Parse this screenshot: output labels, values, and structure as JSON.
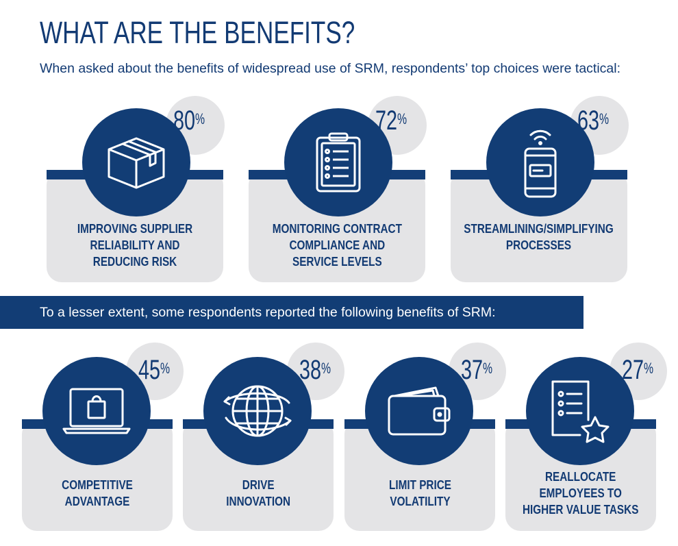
{
  "title": "WHAT ARE THE BENEFITS?",
  "subtitle": "When asked about the benefits of widespread use of SRM, respondents’ top choices were tactical:",
  "banner": "To a lesser extent, some respondents reported the following benefits of SRM:",
  "colors": {
    "navy": "#123d75",
    "light_gray": "#e4e4e6",
    "white": "#ffffff"
  },
  "top_cards": [
    {
      "percent": "80",
      "label": "IMPROVING SUPPLIER\nRELIABILITY AND\nREDUCING RISK",
      "icon": "package-box-icon"
    },
    {
      "percent": "72",
      "label": "MONITORING CONTRACT\nCOMPLIANCE AND\nSERVICE LEVELS",
      "icon": "clipboard-checklist-icon"
    },
    {
      "percent": "63",
      "label": "STREAMLINING/SIMPLIFYING\nPROCESSES",
      "icon": "mobile-phone-wifi-icon"
    }
  ],
  "bottom_cards": [
    {
      "percent": "45",
      "label": "COMPETITIVE\nADVANTAGE",
      "icon": "laptop-shopping-bag-icon"
    },
    {
      "percent": "38",
      "label": "DRIVE\nINNOVATION",
      "icon": "globe-arrows-icon"
    },
    {
      "percent": "37",
      "label": "LIMIT PRICE\nVOLATILITY",
      "icon": "wallet-icon"
    },
    {
      "percent": "27",
      "label": "REALLOCATE\nEMPLOYEES TO\nHIGHER VALUE TASKS",
      "icon": "checklist-star-icon"
    }
  ]
}
